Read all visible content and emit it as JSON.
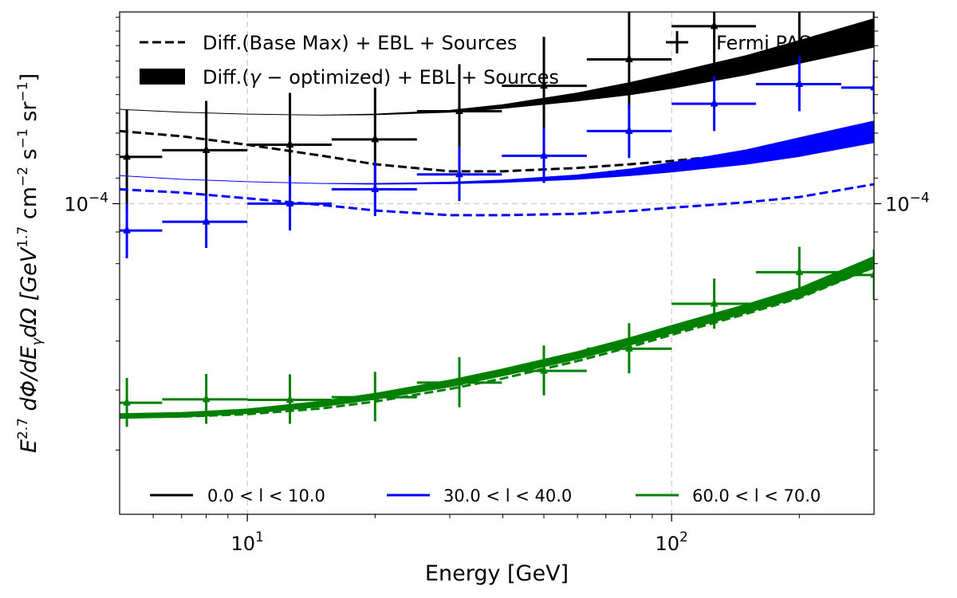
{
  "chart_data": {
    "type": "line",
    "xlabel": "Energy [GeV]",
    "ylabel_base": "E",
    "ylabel_exp": "2.7",
    "ylabel_mid": " dΦ/dE",
    "ylabel_sub": "γ",
    "ylabel_rest": "dΩ [GeV",
    "ylabel_unit_exp1": "1.7",
    "ylabel_unit_mid1": " cm",
    "ylabel_unit_exp2": "−2",
    "ylabel_unit_mid2": " s",
    "ylabel_unit_exp3": "−1",
    "ylabel_unit_mid3": " sr",
    "ylabel_unit_exp4": "−1",
    "ylabel_end": "]",
    "x_scale": "log",
    "y_scale": "log",
    "xlim": [
      5,
      300
    ],
    "ylim": [
      3.15e-05,
      0.000204
    ],
    "x_ticks": [
      {
        "value": 10,
        "base": "10",
        "exp": "1"
      },
      {
        "value": 100,
        "base": "10",
        "exp": "2"
      }
    ],
    "y_ticks": [
      {
        "value": 0.0001,
        "base": "10",
        "exp": "−4"
      }
    ],
    "grid": true,
    "legend_top": {
      "base_max_label": "Diff.(Base Max) + EBL + Sources",
      "gamma_opt_label_pre": "Diff.(",
      "gamma_opt_label_gamma": "γ",
      "gamma_opt_label_post": " − optimized) + EBL + Sources",
      "fermi_label": "Fermi PASS8"
    },
    "legend_bottom": [
      {
        "label": "0.0 < l < 10.0",
        "color": "#000000"
      },
      {
        "label": "30.0 < l < 40.0",
        "color": "#0000ff"
      },
      {
        "label": "60.0 < l < 70.0",
        "color": "#008000"
      }
    ],
    "series": [
      {
        "name": "0.0 < l < 10.0",
        "color": "#000000",
        "model_energy": [
          5,
          7,
          10,
          15,
          20,
          30,
          40,
          60,
          80,
          100,
          150,
          200,
          300
        ],
        "band_lower": [
          0.000142,
          0.0001405,
          0.0001395,
          0.000139,
          0.0001392,
          0.0001405,
          0.0001425,
          0.0001465,
          0.00015,
          0.0001535,
          0.0001615,
          0.0001685,
          0.000179
        ],
        "band_upper": [
          0.000142,
          0.0001405,
          0.0001395,
          0.000139,
          0.0001395,
          0.0001415,
          0.0001445,
          0.000151,
          0.000157,
          0.0001625,
          0.0001735,
          0.0001835,
          0.000199
        ],
        "base_max": [
          0.000131,
          0.0001285,
          0.0001245,
          0.0001195,
          0.0001158,
          0.0001128,
          0.0001128,
          0.0001142,
          0.0001158,
          0.0001172,
          0.0001205,
          0.0001235,
          0.0001285
        ],
        "fermi_energy": [
          5.2,
          8,
          12.6,
          20,
          31.6,
          50,
          79.4,
          126,
          200,
          300
        ],
        "fermi_value": [
          0.000119,
          0.000122,
          0.0001245,
          0.000127,
          0.000141,
          0.000155,
          0.000171,
          0.0001935,
          0.0002085,
          0.0002365
        ],
        "fermi_err_low": [
          9.75e-05,
          0.000101,
          0.0001035,
          0.0001055,
          0.0001175,
          0.000129,
          0.000142,
          0.0001605,
          0.0001735,
          0.000197
        ],
        "fermi_err_high": [
          0.000142,
          0.0001465,
          0.000151,
          0.000154,
          0.000168,
          0.000186,
          0.0002055,
          0.0002325,
          0.000251,
          0.000285
        ],
        "fermi_bin_low": [
          5,
          6.3,
          10,
          15.8,
          25.1,
          39.8,
          63.1,
          100,
          158,
          251
        ],
        "fermi_bin_high": [
          6.3,
          10,
          15.8,
          25.1,
          39.8,
          63.1,
          100,
          158,
          251,
          300
        ]
      },
      {
        "name": "30.0 < l < 40.0",
        "color": "#0000ff",
        "model_energy": [
          5,
          7,
          10,
          15,
          20,
          30,
          40,
          60,
          80,
          100,
          150,
          200,
          300
        ],
        "band_lower": [
          0.000111,
          0.0001095,
          0.0001085,
          0.0001078,
          0.0001075,
          0.0001077,
          0.0001082,
          0.0001095,
          0.000111,
          0.0001125,
          0.0001158,
          0.0001192,
          0.0001255
        ],
        "band_upper": [
          0.000111,
          0.0001095,
          0.0001085,
          0.0001078,
          0.0001078,
          0.0001083,
          0.0001092,
          0.0001113,
          0.0001138,
          0.0001165,
          0.0001222,
          0.0001278,
          0.000136
        ],
        "base_max": [
          0.0001055,
          0.0001042,
          0.000102,
          9.95e-05,
          9.75e-05,
          9.58e-05,
          9.58e-05,
          9.63e-05,
          9.73e-05,
          9.85e-05,
          0.0001005,
          0.0001025,
          0.0001075
        ],
        "fermi_energy": [
          5.2,
          8,
          12.6,
          20,
          31.6,
          50,
          79.4,
          126,
          200,
          300
        ],
        "fermi_value": [
          9.05e-05,
          9.35e-05,
          0.0001,
          0.0001055,
          0.0001115,
          0.0001195,
          0.000131,
          0.000145,
          0.000156,
          0.000154
        ],
        "fermi_err_low": [
          8.16e-05,
          8.48e-05,
          9.05e-05,
          9.55e-05,
          0.000101,
          0.000108,
          0.0001185,
          0.000131,
          0.000141,
          0.0001395
        ],
        "fermi_err_high": [
          0.0001,
          0.0001035,
          0.000111,
          0.0001168,
          0.0001235,
          0.0001325,
          0.000145,
          0.0001605,
          0.0001728,
          0.0001705
        ],
        "fermi_bin_low": [
          5,
          6.3,
          10,
          15.8,
          25.1,
          39.8,
          63.1,
          100,
          158,
          251
        ],
        "fermi_bin_high": [
          6.3,
          10,
          15.8,
          25.1,
          39.8,
          63.1,
          100,
          158,
          251,
          300
        ]
      },
      {
        "name": "60.0 < l < 70.0",
        "color": "#008000",
        "model_energy": [
          5,
          7,
          10,
          15,
          20,
          30,
          40,
          60,
          80,
          100,
          150,
          200,
          300
        ],
        "band_lower": [
          4.5e-05,
          4.52e-05,
          4.58e-05,
          4.7e-05,
          4.83e-05,
          5.06e-05,
          5.27e-05,
          5.61e-05,
          5.91e-05,
          6.17e-05,
          6.66e-05,
          7.05e-05,
          7.87e-05
        ],
        "band_upper": [
          4.58e-05,
          4.6e-05,
          4.66e-05,
          4.8e-05,
          4.94e-05,
          5.19e-05,
          5.41e-05,
          5.77e-05,
          6.08e-05,
          6.36e-05,
          6.88e-05,
          7.31e-05,
          8.22e-05
        ],
        "base_max": [
          4.52e-05,
          4.53e-05,
          4.57e-05,
          4.67e-05,
          4.79e-05,
          5.02e-05,
          5.22e-05,
          5.57e-05,
          5.87e-05,
          6.14e-05,
          6.64e-05,
          7.04e-05,
          7.89e-05
        ],
        "fermi_energy": [
          5.2,
          8,
          12.6,
          20,
          31.6,
          50,
          79.4,
          126,
          200,
          300
        ],
        "fermi_value": [
          4.77e-05,
          4.83e-05,
          4.82e-05,
          4.87e-05,
          5.14e-05,
          5.37e-05,
          5.83e-05,
          6.89e-05,
          7.75e-05,
          7.67e-05
        ],
        "fermi_err_low": [
          4.36e-05,
          4.41e-05,
          4.41e-05,
          4.45e-05,
          4.69e-05,
          4.9e-05,
          5.32e-05,
          6.28e-05,
          7.07e-05,
          7e-05
        ],
        "fermi_err_high": [
          5.23e-05,
          5.31e-05,
          5.3e-05,
          5.35e-05,
          5.65e-05,
          5.9e-05,
          6.41e-05,
          7.57e-05,
          8.52e-05,
          8.43e-05
        ],
        "fermi_bin_low": [
          5,
          6.3,
          10,
          15.8,
          25.1,
          39.8,
          63.1,
          100,
          158,
          251
        ],
        "fermi_bin_high": [
          6.3,
          10,
          15.8,
          25.1,
          39.8,
          63.1,
          100,
          158,
          251,
          300
        ]
      }
    ]
  }
}
